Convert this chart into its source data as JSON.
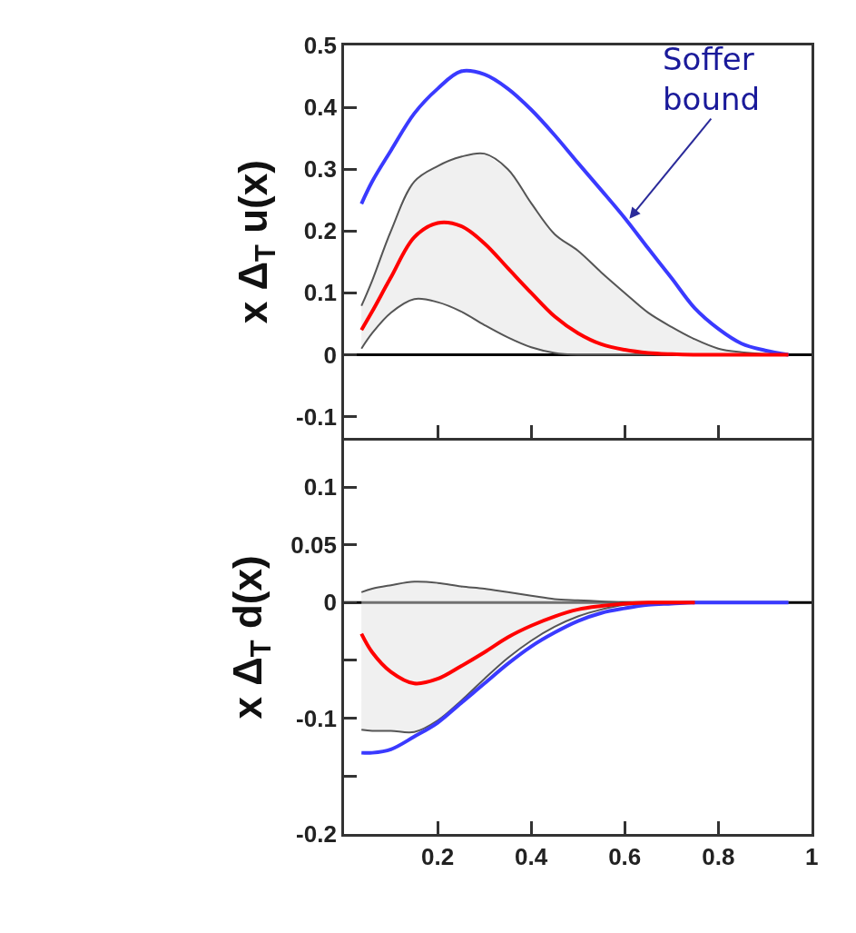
{
  "chart_data": [
    {
      "type": "line",
      "ylabel": "x Δ$_{T}$ u(x)",
      "xlim": [
        0,
        1
      ],
      "xticks": [
        {
          "value": 0.2,
          "label": null
        },
        {
          "value": 0.4,
          "label": null
        },
        {
          "value": 0.6,
          "label": null
        },
        {
          "value": 0.8,
          "label": null
        }
      ],
      "ylim": [
        -0.135,
        0.5
      ],
      "yticks": [
        -0.1,
        0,
        0.1,
        0.2,
        0.3,
        0.4,
        0.5
      ],
      "tick_labels": "y",
      "grid": false,
      "x": [
        0.037,
        0.06,
        0.1,
        0.15,
        0.2,
        0.25,
        0.3,
        0.35,
        0.4,
        0.45,
        0.5,
        0.55,
        0.6,
        0.65,
        0.7,
        0.75,
        0.8,
        0.85,
        0.9,
        0.95
      ],
      "series": [
        {
          "color": "#555555",
          "values": [
            0.079,
            0.12,
            0.2,
            0.28,
            0.305,
            0.32,
            0.325,
            0.3,
            0.245,
            0.195,
            0.168,
            0.133,
            0.1,
            0.068,
            0.045,
            0.025,
            0.01,
            0.004,
            0.001,
            0
          ]
        },
        {
          "color": "#555555",
          "values": [
            0.01,
            0.035,
            0.068,
            0.09,
            0.085,
            0.07,
            0.048,
            0.028,
            0.012,
            0.003,
            0,
            0,
            0,
            0,
            0,
            0,
            0,
            0,
            0,
            0
          ]
        },
        {
          "color": "#3a3aff",
          "values": [
            0.244,
            0.28,
            0.33,
            0.39,
            0.43,
            0.458,
            0.453,
            0.43,
            0.396,
            0.355,
            0.31,
            0.266,
            0.221,
            0.172,
            0.124,
            0.075,
            0.042,
            0.018,
            0.007,
            0
          ]
        },
        {
          "color": "#ff0000",
          "values": [
            0.04,
            0.07,
            0.125,
            0.19,
            0.213,
            0.208,
            0.18,
            0.14,
            0.1,
            0.062,
            0.035,
            0.017,
            0.008,
            0.003,
            0.001,
            0,
            0,
            0,
            0,
            0
          ],
          "lower": [
            0.01,
            0.035,
            0.068,
            0.09,
            0.085,
            0.07,
            0.048,
            0.028,
            0.012,
            0.003,
            0,
            0,
            0,
            0,
            0,
            0,
            0,
            0,
            0,
            0
          ],
          "upper": [
            0.079,
            0.12,
            0.2,
            0.28,
            0.305,
            0.32,
            0.325,
            0.3,
            0.245,
            0.195,
            0.168,
            0.133,
            0.1,
            0.068,
            0.045,
            0.025,
            0.01,
            0.004,
            0.001,
            0
          ]
        }
      ],
      "ref_lines": [
        {
          "axis": "y",
          "value": 0,
          "color": "#000000"
        }
      ],
      "annotations": [
        {
          "text": "Soffer bound",
          "x": 0.61,
          "y": 0.22
        }
      ]
    },
    {
      "type": "line",
      "ylabel": "x Δ$_{T}$ d(x)",
      "xlim": [
        0,
        1
      ],
      "xticks": [
        0.2,
        0.4,
        0.6,
        0.8,
        1
      ],
      "ylim": [
        -0.2,
        0.14
      ],
      "yticks": [
        -0.2,
        {
          "value": -0.15,
          "label": null
        },
        -0.1,
        {
          "value": -0.05,
          "label": null
        },
        0,
        0.05,
        0.1
      ],
      "grid": false,
      "x": [
        0.037,
        0.06,
        0.1,
        0.15,
        0.2,
        0.25,
        0.3,
        0.35,
        0.4,
        0.45,
        0.5,
        0.55,
        0.6,
        0.65,
        0.7,
        0.75,
        0.8,
        0.85,
        0.9,
        0.95
      ],
      "series": [
        {
          "color": "#555555",
          "values": [
            0.009,
            0.012,
            0.015,
            0.018,
            0.017,
            0.014,
            0.012,
            0.009,
            0.006,
            0.003,
            0.002,
            0.001,
            0,
            0,
            0,
            0,
            0,
            0,
            0,
            0
          ]
        },
        {
          "color": "#555555",
          "values": [
            -0.11,
            -0.111,
            -0.111,
            -0.112,
            -0.102,
            -0.085,
            -0.066,
            -0.048,
            -0.033,
            -0.021,
            -0.012,
            -0.006,
            -0.002,
            -0.001,
            0,
            0,
            0,
            0,
            0,
            0
          ]
        },
        {
          "color": "#3a3aff",
          "values": [
            -0.13,
            -0.13,
            -0.127,
            -0.116,
            -0.104,
            -0.087,
            -0.07,
            -0.053,
            -0.038,
            -0.026,
            -0.016,
            -0.009,
            -0.005,
            -0.002,
            -0.001,
            0,
            0,
            0,
            0,
            0
          ]
        },
        {
          "color": "#ff0000",
          "values": [
            -0.027,
            -0.043,
            -0.06,
            -0.07,
            -0.066,
            -0.055,
            -0.043,
            -0.03,
            -0.02,
            -0.012,
            -0.006,
            -0.003,
            -0.001,
            0,
            0,
            0,
            null,
            null,
            null,
            null
          ],
          "lower": [
            -0.11,
            -0.111,
            -0.111,
            -0.112,
            -0.102,
            -0.085,
            -0.066,
            -0.048,
            -0.033,
            -0.021,
            -0.012,
            -0.006,
            -0.002,
            -0.001,
            0,
            0,
            0,
            0,
            0,
            0
          ],
          "upper": [
            0.009,
            0.012,
            0.015,
            0.018,
            0.017,
            0.014,
            0.012,
            0.009,
            0.006,
            0.003,
            0.002,
            0.001,
            0,
            0,
            0,
            0,
            0,
            0,
            0,
            0
          ]
        }
      ],
      "ref_lines": [
        {
          "axis": "y",
          "value": 0,
          "color": "#000000"
        }
      ]
    }
  ]
}
